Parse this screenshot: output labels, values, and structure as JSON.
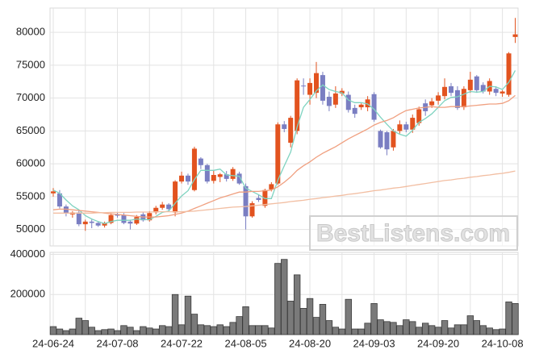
{
  "chart_data": [
    {
      "type": "candlestick",
      "categories": [
        "24-06-24",
        null,
        null,
        null,
        null,
        null,
        null,
        null,
        null,
        null,
        "24-07-08",
        null,
        null,
        null,
        null,
        null,
        null,
        null,
        null,
        null,
        "24-07-22",
        null,
        null,
        null,
        null,
        null,
        null,
        null,
        null,
        null,
        "24-08-05",
        null,
        null,
        null,
        null,
        null,
        null,
        null,
        null,
        null,
        "24-08-20",
        null,
        null,
        null,
        null,
        null,
        null,
        null,
        null,
        null,
        "24-09-03",
        null,
        null,
        null,
        null,
        null,
        null,
        null,
        null,
        null,
        "24-09-20",
        null,
        null,
        null,
        null,
        null,
        null,
        null,
        null,
        null,
        "24-10-08",
        null,
        null
      ],
      "open": [
        55500,
        55500,
        53500,
        52300,
        52600,
        50800,
        51200,
        51000,
        50600,
        51000,
        52300,
        52200,
        51200,
        50900,
        52300,
        51400,
        52600,
        53300,
        53800,
        52600,
        57300,
        58200,
        56000,
        60800,
        59800,
        57400,
        58000,
        58400,
        57700,
        58500,
        56600,
        52000,
        54800,
        53600,
        56100,
        57000,
        66000,
        63200,
        65000,
        71900,
        70500,
        70800,
        73500,
        70200,
        69000,
        70700,
        70500,
        68500,
        68600,
        68600,
        70600,
        65000,
        64800,
        62500,
        65000,
        66000,
        65200,
        66200,
        69200,
        68900,
        69600,
        70300,
        71800,
        71200,
        68600,
        71200,
        73300,
        72000,
        71000,
        71400,
        70700,
        70500,
        79300
      ],
      "high": [
        56300,
        56000,
        53800,
        52800,
        52900,
        51500,
        51500,
        51200,
        51200,
        52500,
        52600,
        52500,
        51500,
        52200,
        52600,
        52800,
        53600,
        54200,
        54000,
        57500,
        58800,
        58500,
        62600,
        61000,
        60000,
        59000,
        58600,
        58900,
        59500,
        58800,
        57000,
        54300,
        55300,
        56200,
        57200,
        66300,
        66500,
        67300,
        73000,
        73000,
        73000,
        75500,
        74000,
        71000,
        71800,
        71500,
        71000,
        69000,
        69200,
        70300,
        70900,
        65200,
        65000,
        65300,
        66600,
        66400,
        67500,
        68700,
        69800,
        70000,
        70900,
        73000,
        72300,
        71800,
        71800,
        74000,
        73500,
        72400,
        73000,
        71800,
        71200,
        77000,
        82200
      ],
      "low": [
        55000,
        53200,
        52000,
        51800,
        50500,
        49800,
        50200,
        50400,
        50300,
        50800,
        51800,
        50800,
        50000,
        50700,
        51200,
        51200,
        52300,
        53000,
        52800,
        52000,
        57000,
        56800,
        55800,
        59200,
        57000,
        57000,
        57200,
        57300,
        57400,
        56800,
        50000,
        51800,
        54200,
        53300,
        55800,
        56800,
        64800,
        62500,
        64500,
        70500,
        69000,
        70000,
        69000,
        68000,
        68500,
        70300,
        67800,
        67000,
        68200,
        68000,
        66400,
        62300,
        61300,
        62000,
        64600,
        64800,
        64700,
        65800,
        67300,
        68500,
        69000,
        69800,
        70300,
        68200,
        68200,
        70800,
        70800,
        70700,
        70500,
        70300,
        70200,
        70200,
        78400
      ],
      "close": [
        55800,
        53500,
        52500,
        52600,
        50800,
        51200,
        51000,
        50600,
        51000,
        52200,
        52100,
        51000,
        50900,
        51900,
        51400,
        52500,
        53300,
        53800,
        53100,
        57300,
        58200,
        57300,
        62300,
        59800,
        57300,
        58300,
        58400,
        57700,
        59200,
        57000,
        52000,
        54000,
        54500,
        56000,
        56900,
        66000,
        65300,
        67000,
        72700,
        71800,
        72300,
        73800,
        69600,
        68800,
        70700,
        71100,
        68200,
        67600,
        69000,
        69800,
        66700,
        62500,
        62200,
        65000,
        66000,
        65200,
        67000,
        68300,
        68000,
        69500,
        70400,
        71700,
        70800,
        68500,
        71400,
        72800,
        71200,
        71000,
        72600,
        70800,
        71000,
        76800,
        79700
      ],
      "up_color": "#e2531f",
      "down_color": "#7a7ec2",
      "lines": [
        {
          "color": "#7fd3c0",
          "values": [
            56000,
            55500,
            54500,
            53600,
            53000,
            52100,
            51600,
            51200,
            50900,
            51200,
            51400,
            51400,
            51400,
            51600,
            51500,
            51500,
            52000,
            52600,
            52800,
            54000,
            55100,
            55900,
            57600,
            59000,
            59000,
            59000,
            59200,
            58300,
            58200,
            58100,
            56300,
            55800,
            55300,
            54700,
            54700,
            57500,
            59700,
            61800,
            65600,
            68600,
            69800,
            71100,
            72000,
            71300,
            71000,
            70800,
            69700,
            69300,
            69300,
            69100,
            68300,
            67100,
            66000,
            65000,
            64500,
            64200,
            65100,
            66300,
            66900,
            67600,
            68600,
            69600,
            70100,
            70200,
            70600,
            71000,
            70900,
            71000,
            71800,
            71700,
            71300,
            72400,
            74200
          ]
        },
        {
          "color": "#f0a080",
          "values": [
            53000,
            53100,
            53100,
            53000,
            52900,
            52800,
            52700,
            52600,
            52500,
            52400,
            52300,
            52200,
            52100,
            52000,
            51900,
            51900,
            51900,
            52000,
            52100,
            52300,
            52500,
            52800,
            53200,
            53600,
            54000,
            54400,
            54800,
            55100,
            55400,
            55700,
            55700,
            55800,
            55800,
            55900,
            56000,
            56500,
            57200,
            58000,
            59000,
            59700,
            60300,
            61000,
            61600,
            62100,
            62600,
            63200,
            63800,
            64300,
            64800,
            65300,
            65900,
            66300,
            66600,
            67000,
            67600,
            68100,
            68300,
            68500,
            68600,
            68700,
            68600,
            68600,
            68700,
            68700,
            68700,
            68800,
            68900,
            69000,
            69100,
            69100,
            69200,
            69600,
            70400
          ]
        },
        {
          "color": "#f2bea2",
          "values": [
            52500,
            52500,
            52500,
            52500,
            52500,
            52500,
            52500,
            52550,
            52550,
            52600,
            52600,
            52600,
            52600,
            52650,
            52650,
            52650,
            52700,
            52700,
            52700,
            52700,
            52700,
            52750,
            52800,
            52900,
            53000,
            53100,
            53200,
            53300,
            53400,
            53450,
            53500,
            53600,
            53700,
            53800,
            53900,
            54000,
            54100,
            54250,
            54350,
            54450,
            54600,
            54700,
            54850,
            54950,
            55100,
            55200,
            55350,
            55450,
            55600,
            55750,
            55900,
            56000,
            56150,
            56300,
            56400,
            56550,
            56700,
            56850,
            57000,
            57150,
            57300,
            57450,
            57550,
            57700,
            57800,
            57950,
            58050,
            58200,
            58300,
            58450,
            58550,
            58700,
            58900
          ]
        }
      ],
      "ylim": [
        47500,
        83700
      ],
      "yticks": [
        50000,
        55000,
        60000,
        65000,
        70000,
        75000,
        80000
      ],
      "grid": true
    },
    {
      "type": "bar",
      "values": [
        40000,
        28000,
        20000,
        28000,
        82000,
        70000,
        37000,
        20000,
        25000,
        28000,
        20000,
        45000,
        37000,
        20000,
        40000,
        33000,
        28000,
        45000,
        40000,
        200000,
        49000,
        192000,
        102000,
        49000,
        45000,
        40000,
        49000,
        40000,
        61000,
        90000,
        139000,
        45000,
        45000,
        45000,
        33000,
        355000,
        375000,
        167000,
        298000,
        131000,
        180000,
        86000,
        151000,
        70000,
        37000,
        28000,
        176000,
        28000,
        28000,
        57000,
        155000,
        74000,
        65000,
        61000,
        45000,
        74000,
        65000,
        37000,
        57000,
        45000,
        37000,
        70000,
        33000,
        49000,
        49000,
        94000,
        70000,
        45000,
        33000,
        25000,
        28000,
        163000,
        155000
      ],
      "color": "#7a7a7a",
      "ylim": [
        0,
        410000
      ],
      "yticks": [
        200000,
        400000
      ],
      "grid": true
    }
  ],
  "watermark": "BestListens.com"
}
